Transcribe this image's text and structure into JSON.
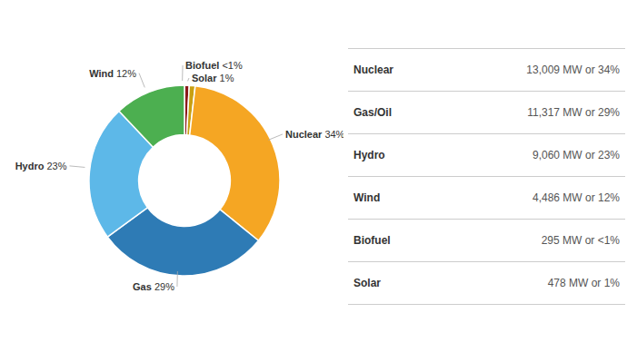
{
  "chart_data": [
    {
      "type": "pie",
      "categories": [
        "Biofuel",
        "Solar",
        "Nuclear",
        "Gas",
        "Hydro",
        "Wind"
      ],
      "values": [
        0.8,
        1,
        34,
        29,
        23,
        12
      ],
      "value_labels": [
        "<1%",
        "1%",
        "34%",
        "29%",
        "23%",
        "12%"
      ],
      "colors": [
        "#8b1a1a",
        "#c8a012",
        "#f5a623",
        "#2e7bb5",
        "#5db8e8",
        "#4caf50"
      ],
      "data_labels": true
    },
    {
      "type": "table",
      "categories": [
        "Nuclear",
        "Gas/Oil",
        "Hydro",
        "Wind",
        "Biofuel",
        "Solar"
      ],
      "cells": [
        "13,009 MW or 34%",
        "11,317 MW or 29%",
        "9,060 MW or 23%",
        "4,486 MW or 12%",
        "295 MW or <1%",
        "478 MW or 1%"
      ]
    }
  ]
}
